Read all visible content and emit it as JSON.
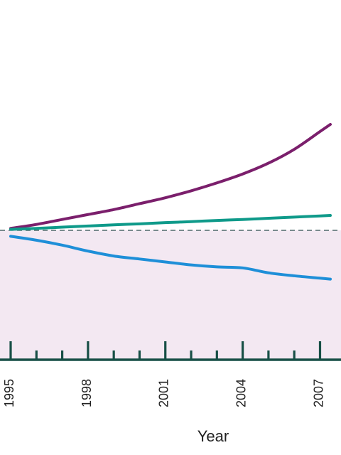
{
  "chart_data": {
    "type": "line",
    "xlabel": "Year",
    "ylabel": "",
    "x_ticks": [
      1995,
      1998,
      2001,
      2004,
      2007
    ],
    "xlim": [
      1995,
      2007.4
    ],
    "ylim": [
      0,
      100
    ],
    "grid": false,
    "reference_line": {
      "y": 50,
      "style": "dashed",
      "color": "#2f4f4f"
    },
    "shaded_region": {
      "from": 0,
      "to": 50,
      "color": "#f3e8f2"
    },
    "series": [
      {
        "color": "#7b1f6c",
        "x": [
          1995,
          1996,
          1997,
          1998,
          1999,
          2000,
          2001,
          2002,
          2003,
          2004,
          2005,
          2006,
          2007
        ],
        "values": [
          51.0,
          53.0,
          55.5,
          58.0,
          60.5,
          63.5,
          66.5,
          70.0,
          74.0,
          78.5,
          84.0,
          91.0,
          100.0
        ]
      },
      {
        "color": "#0f9a8a",
        "x": [
          1995,
          1996,
          1997,
          1998,
          1999,
          2000,
          2001,
          2002,
          2003,
          2004,
          2005,
          2006,
          2007
        ],
        "values": [
          50.5,
          51.0,
          51.6,
          52.2,
          52.8,
          53.3,
          53.9,
          54.4,
          55.0,
          55.5,
          56.1,
          56.7,
          57.3
        ]
      },
      {
        "color": "#1e8fd8",
        "x": [
          1995,
          1996,
          1997,
          1998,
          1999,
          2000,
          2001,
          2002,
          2003,
          2004,
          2005,
          2006,
          2007
        ],
        "values": [
          47.0,
          45.0,
          42.5,
          39.5,
          37.0,
          35.5,
          34.0,
          32.5,
          31.5,
          31.0,
          28.5,
          27.0,
          25.8
        ]
      }
    ]
  }
}
